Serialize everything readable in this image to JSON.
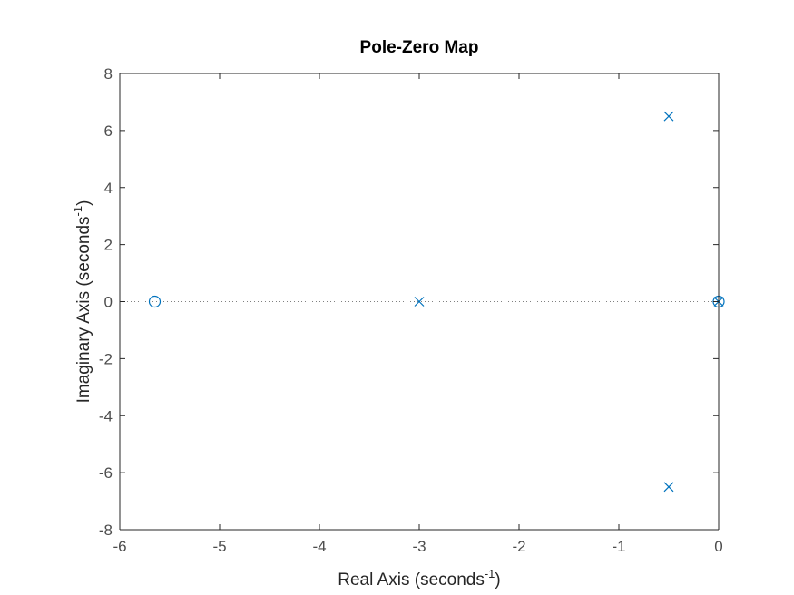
{
  "chart_data": {
    "type": "scatter",
    "title": "Pole-Zero Map",
    "xlabel": {
      "text": "Real Axis (seconds",
      "superscript": "-1",
      "close": ")"
    },
    "ylabel": {
      "text": "Imaginary Axis (seconds",
      "superscript": "-1",
      "close": ")"
    },
    "xlim": [
      -6,
      0
    ],
    "ylim": [
      -8,
      8
    ],
    "xticks": [
      "-6",
      "-5",
      "-4",
      "-3",
      "-2",
      "-1",
      "0"
    ],
    "yticks": [
      "-8",
      "-6",
      "-4",
      "-2",
      "0",
      "2",
      "4",
      "6",
      "8"
    ],
    "grid": false,
    "series": [
      {
        "marker": "x",
        "points": [
          {
            "x": -0.5,
            "y": 6.5
          },
          {
            "x": -0.5,
            "y": -6.5
          },
          {
            "x": -3,
            "y": 0
          },
          {
            "x": 0,
            "y": 0
          }
        ]
      },
      {
        "marker": "o",
        "points": [
          {
            "x": -5.65,
            "y": 0
          },
          {
            "x": 0,
            "y": 0
          }
        ]
      }
    ],
    "reference_line": {
      "y": 0,
      "style": "dotted"
    },
    "colors": {
      "marker": "#0072bd",
      "axes": "#262626",
      "tick_text": "#4d4d4d",
      "reference": "#808080"
    }
  }
}
